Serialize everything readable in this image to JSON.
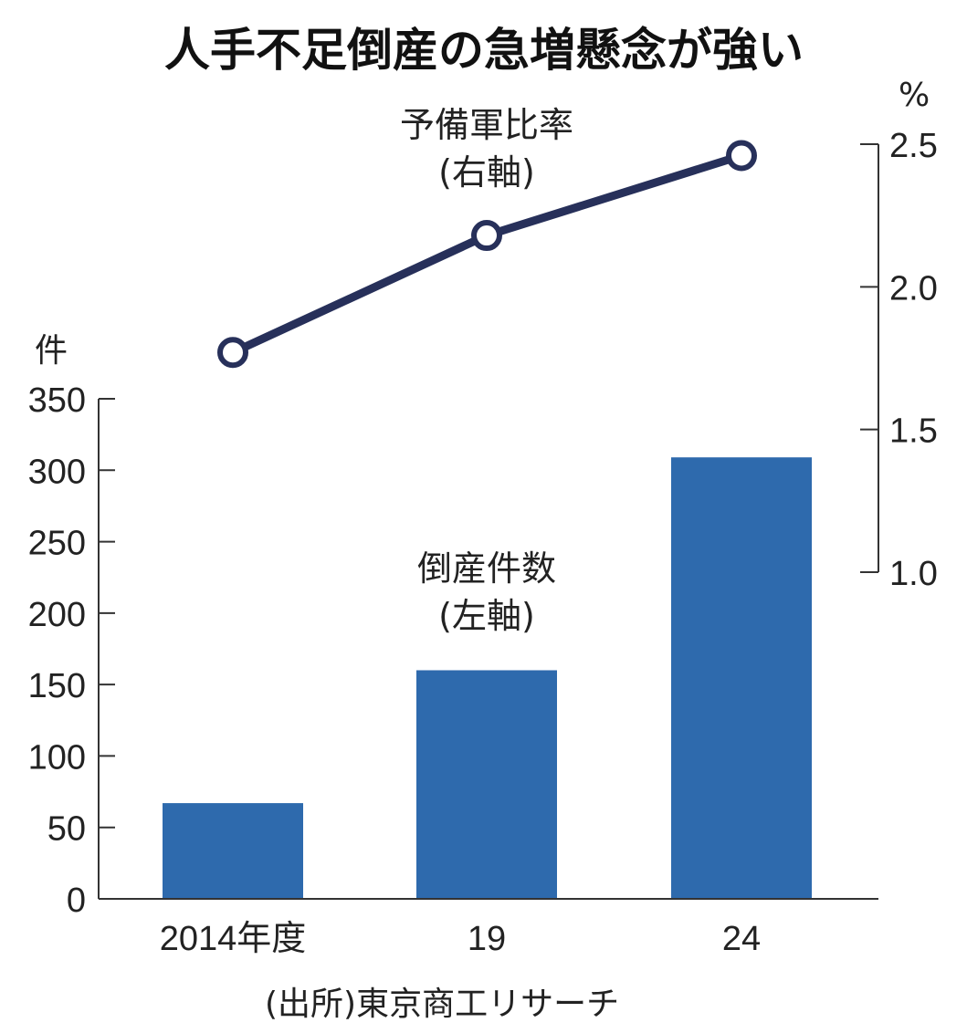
{
  "title": "人手不足倒産の急増懸念が強い",
  "source": "(出所)東京商工リサーチ",
  "left_unit": "件",
  "right_unit": "%",
  "chart_data": {
    "type": "bar",
    "categories": [
      "2014年度",
      "19",
      "24"
    ],
    "series": [
      {
        "name": "倒産件数",
        "axis_note": "(左軸)",
        "type": "bar",
        "axis": "left",
        "color": "#2e6aad",
        "values": [
          67,
          160,
          309
        ]
      },
      {
        "name": "予備軍比率",
        "axis_note": "(右軸)",
        "type": "line",
        "axis": "right",
        "color": "#27305a",
        "values": [
          1.77,
          2.18,
          2.46
        ]
      }
    ],
    "left_axis": {
      "ylim": [
        0,
        350
      ],
      "ticks": [
        "0",
        "50",
        "100",
        "150",
        "200",
        "250",
        "300",
        "350"
      ]
    },
    "right_axis": {
      "ylim": [
        1.0,
        2.5
      ],
      "ticks": [
        "1.0",
        "1.5",
        "2.0",
        "2.5"
      ]
    },
    "grid": false
  }
}
